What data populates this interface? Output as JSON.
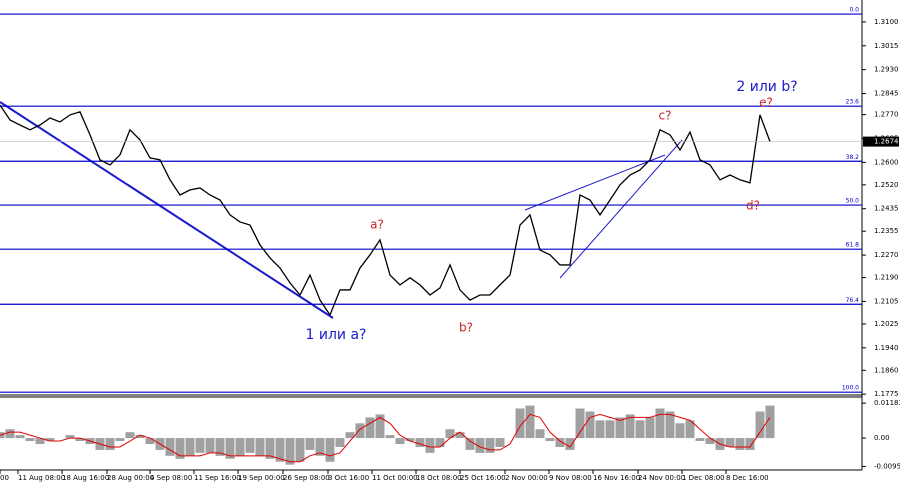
{
  "chart_data": [
    {
      "type": "line",
      "color": "#000000",
      "values": [
        1.2804,
        1.2751,
        1.2733,
        1.2716,
        1.2733,
        1.2758,
        1.2744,
        1.2769,
        1.278,
        1.2698,
        1.2609,
        1.2591,
        1.2627,
        1.2716,
        1.268,
        1.2616,
        1.2609,
        1.2538,
        1.2484,
        1.2502,
        1.2509,
        1.2484,
        1.2466,
        1.2413,
        1.2388,
        1.2377,
        1.2306,
        1.226,
        1.2224,
        1.2171,
        1.2128,
        1.2199,
        1.211,
        1.2057,
        1.2146,
        1.2146,
        1.2224,
        1.2271,
        1.2324,
        1.2199,
        1.2164,
        1.2189,
        1.2164,
        1.2128,
        1.2153,
        1.2235,
        1.2146,
        1.211,
        1.2128,
        1.2128,
        1.2164,
        1.2199,
        1.2377,
        1.2413,
        1.2288,
        1.2271,
        1.2235,
        1.2235,
        1.2484,
        1.2466,
        1.2413,
        1.2466,
        1.252,
        1.2555,
        1.2573,
        1.2609,
        1.2716,
        1.2698,
        1.2644,
        1.2708,
        1.2609,
        1.2591,
        1.2538,
        1.2555,
        1.2538,
        1.2527,
        1.2769,
        1.2674
      ],
      "xlim": [
        0,
        86.2
      ],
      "xticks": [
        {
          "value": 0,
          "label": "00"
        },
        {
          "value": 1.8,
          "label": "11 Aug 08:00"
        },
        {
          "value": 6.2,
          "label": "18 Aug 16:00"
        },
        {
          "value": 10.7,
          "label": "28 Aug 00:00"
        },
        {
          "value": 15,
          "label": "4 Sep 08:00"
        },
        {
          "value": 19.4,
          "label": "11 Sep 16:00"
        },
        {
          "value": 23.8,
          "label": "19 Sep 00:00"
        },
        {
          "value": 28.3,
          "label": "26 Sep 08:00"
        },
        {
          "value": 32.8,
          "label": "3 Oct 16:00"
        },
        {
          "value": 37.2,
          "label": "11 Oct 00:00"
        },
        {
          "value": 41.6,
          "label": "18 Oct 08:00"
        },
        {
          "value": 46,
          "label": "25 Oct 16:00"
        },
        {
          "value": 50.5,
          "label": "2 Nov 00:00"
        },
        {
          "value": 54.9,
          "label": "9 Nov 08:00"
        },
        {
          "value": 59.3,
          "label": "16 Nov 16:00"
        },
        {
          "value": 63.8,
          "label": "24 Nov 00:00"
        },
        {
          "value": 68.2,
          "label": "1 Dec 08:00"
        },
        {
          "value": 72.6,
          "label": "8 Dec 16:00"
        }
      ],
      "ylim": [
        1.1772,
        1.3178
      ],
      "yticks": [
        {
          "value": 1.31,
          "label": "1.3100"
        },
        {
          "value": 1.3015,
          "label": "1.3015"
        },
        {
          "value": 1.293,
          "label": "1.2930"
        },
        {
          "value": 1.2845,
          "label": "1.2845"
        },
        {
          "value": 1.277,
          "label": "1.2770"
        },
        {
          "value": 1.2685,
          "label": "1.2685"
        },
        {
          "value": 1.26,
          "label": "1.2600"
        },
        {
          "value": 1.252,
          "label": "1.2520"
        },
        {
          "value": 1.2435,
          "label": "1.2435"
        },
        {
          "value": 1.2355,
          "label": "1.2355"
        },
        {
          "value": 1.227,
          "label": "1.2270"
        },
        {
          "value": 1.219,
          "label": "1.2190"
        },
        {
          "value": 1.2105,
          "label": "1.2105"
        },
        {
          "value": 1.2025,
          "label": "1.2025"
        },
        {
          "value": 1.194,
          "label": "1.1940"
        },
        {
          "value": 1.186,
          "label": "1.1860"
        },
        {
          "value": 1.1775,
          "label": "1.1775"
        }
      ],
      "current_price": {
        "value": 1.2674,
        "label": "1.2674"
      },
      "levels": [
        {
          "label": "0.0",
          "price": 1.3128
        },
        {
          "label": "23.6",
          "price": 1.28
        },
        {
          "label": "38.2",
          "price": 1.2604
        },
        {
          "label": "50.0",
          "price": 1.2448
        },
        {
          "label": "61.8",
          "price": 1.2291
        },
        {
          "label": "76.4",
          "price": 1.2095
        },
        {
          "label": "100.0",
          "price": 1.1782
        }
      ],
      "level_color": "#0000cc",
      "annotations": [
        {
          "text": "1 или a?",
          "color": "#1a1acc"
        },
        {
          "text": "a?",
          "color": "#cc2222"
        },
        {
          "text": "b?",
          "color": "#cc2222"
        },
        {
          "text": "c?",
          "color": "#cc2222"
        },
        {
          "text": "2 или b?",
          "color": "#1a1acc"
        },
        {
          "text": "e?",
          "color": "#cc2222"
        },
        {
          "text": "d?",
          "color": "#cc2222"
        }
      ]
    },
    {
      "type": "bar",
      "ylim": [
        -0.0108,
        0.0139
      ],
      "yticks": [
        0.01183,
        {
          "value": 0,
          "label": "0.00"
        },
        -0.00959
      ],
      "series": [
        {
          "color": "#a0a0a0",
          "values": [
            0.002,
            0.003,
            0.001,
            -0.001,
            -0.002,
            -0.001,
            0,
            0.001,
            -0.001,
            -0.002,
            -0.004,
            -0.004,
            -0.001,
            0.002,
            0.001,
            -0.002,
            -0.004,
            -0.006,
            -0.007,
            -0.006,
            -0.005,
            -0.005,
            -0.006,
            -0.007,
            -0.006,
            -0.005,
            -0.006,
            -0.007,
            -0.008,
            -0.009,
            -0.008,
            -0.004,
            -0.006,
            -0.008,
            -0.003,
            0.002,
            0.005,
            0.007,
            0.008,
            0.001,
            -0.002,
            -0.001,
            -0.003,
            -0.005,
            -0.003,
            0.003,
            0.002,
            -0.004,
            -0.005,
            -0.005,
            -0.003,
            0,
            0.01,
            0.011,
            0.003,
            -0.001,
            -0.003,
            -0.004,
            0.01,
            0.009,
            0.006,
            0.006,
            0.007,
            0.008,
            0.006,
            0.007,
            0.01,
            0.009,
            0.005,
            0.006,
            -0.001,
            -0.002,
            -0.004,
            -0.003,
            -0.004,
            -0.004,
            0.009,
            0.011
          ]
        },
        {
          "type": "line",
          "color": "#e00000",
          "values": [
            0.001,
            0.002,
            0.002,
            0.001,
            0,
            -0.001,
            -0.001,
            0,
            0,
            -0.001,
            -0.002,
            -0.003,
            -0.003,
            -0.001,
            0.001,
            0,
            -0.002,
            -0.004,
            -0.006,
            -0.006,
            -0.006,
            -0.005,
            -0.005,
            -0.006,
            -0.006,
            -0.006,
            -0.006,
            -0.006,
            -0.007,
            -0.008,
            -0.008,
            -0.006,
            -0.005,
            -0.006,
            -0.005,
            -0.001,
            0.003,
            0.005,
            0.007,
            0.005,
            0.001,
            -0.001,
            -0.002,
            -0.003,
            -0.003,
            0,
            0.002,
            -0.001,
            -0.003,
            -0.004,
            -0.004,
            -0.002,
            0.004,
            0.008,
            0.007,
            0.002,
            -0.001,
            -0.003,
            0.002,
            0.007,
            0.008,
            0.007,
            0.006,
            0.007,
            0.007,
            0.007,
            0.008,
            0.008,
            0.007,
            0.006,
            0.003,
            0,
            -0.002,
            -0.003,
            -0.003,
            -0.003,
            0.002,
            0.007
          ]
        }
      ]
    }
  ]
}
